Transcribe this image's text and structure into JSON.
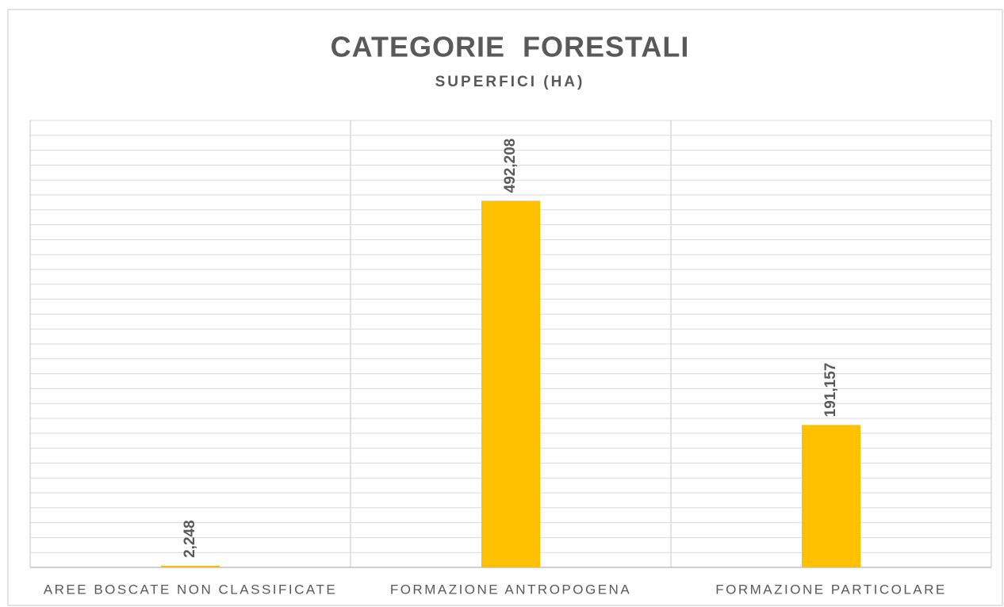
{
  "chart_data": {
    "type": "bar",
    "title": "CATEGORIE  FORESTALI",
    "subtitle": "SUPERFICI (HA)",
    "categories": [
      "AREE BOSCATE NON CLASSIFICATE",
      "FORMAZIONE ANTROPOGENA",
      "FORMAZIONE PARTICOLARE"
    ],
    "values": [
      2248,
      492208,
      191157
    ],
    "value_labels": [
      "2,248",
      "492,208",
      "191,157"
    ],
    "color": "#ffc000",
    "ylim": [
      0,
      600000
    ],
    "yticks": [
      0,
      20000,
      40000,
      60000,
      80000,
      100000,
      120000,
      140000,
      160000,
      180000,
      200000,
      220000,
      240000,
      260000,
      280000,
      300000,
      320000,
      340000,
      360000,
      380000,
      400000,
      420000,
      440000,
      460000,
      480000,
      500000,
      520000,
      540000,
      560000,
      580000,
      600000
    ],
    "grid": true
  }
}
